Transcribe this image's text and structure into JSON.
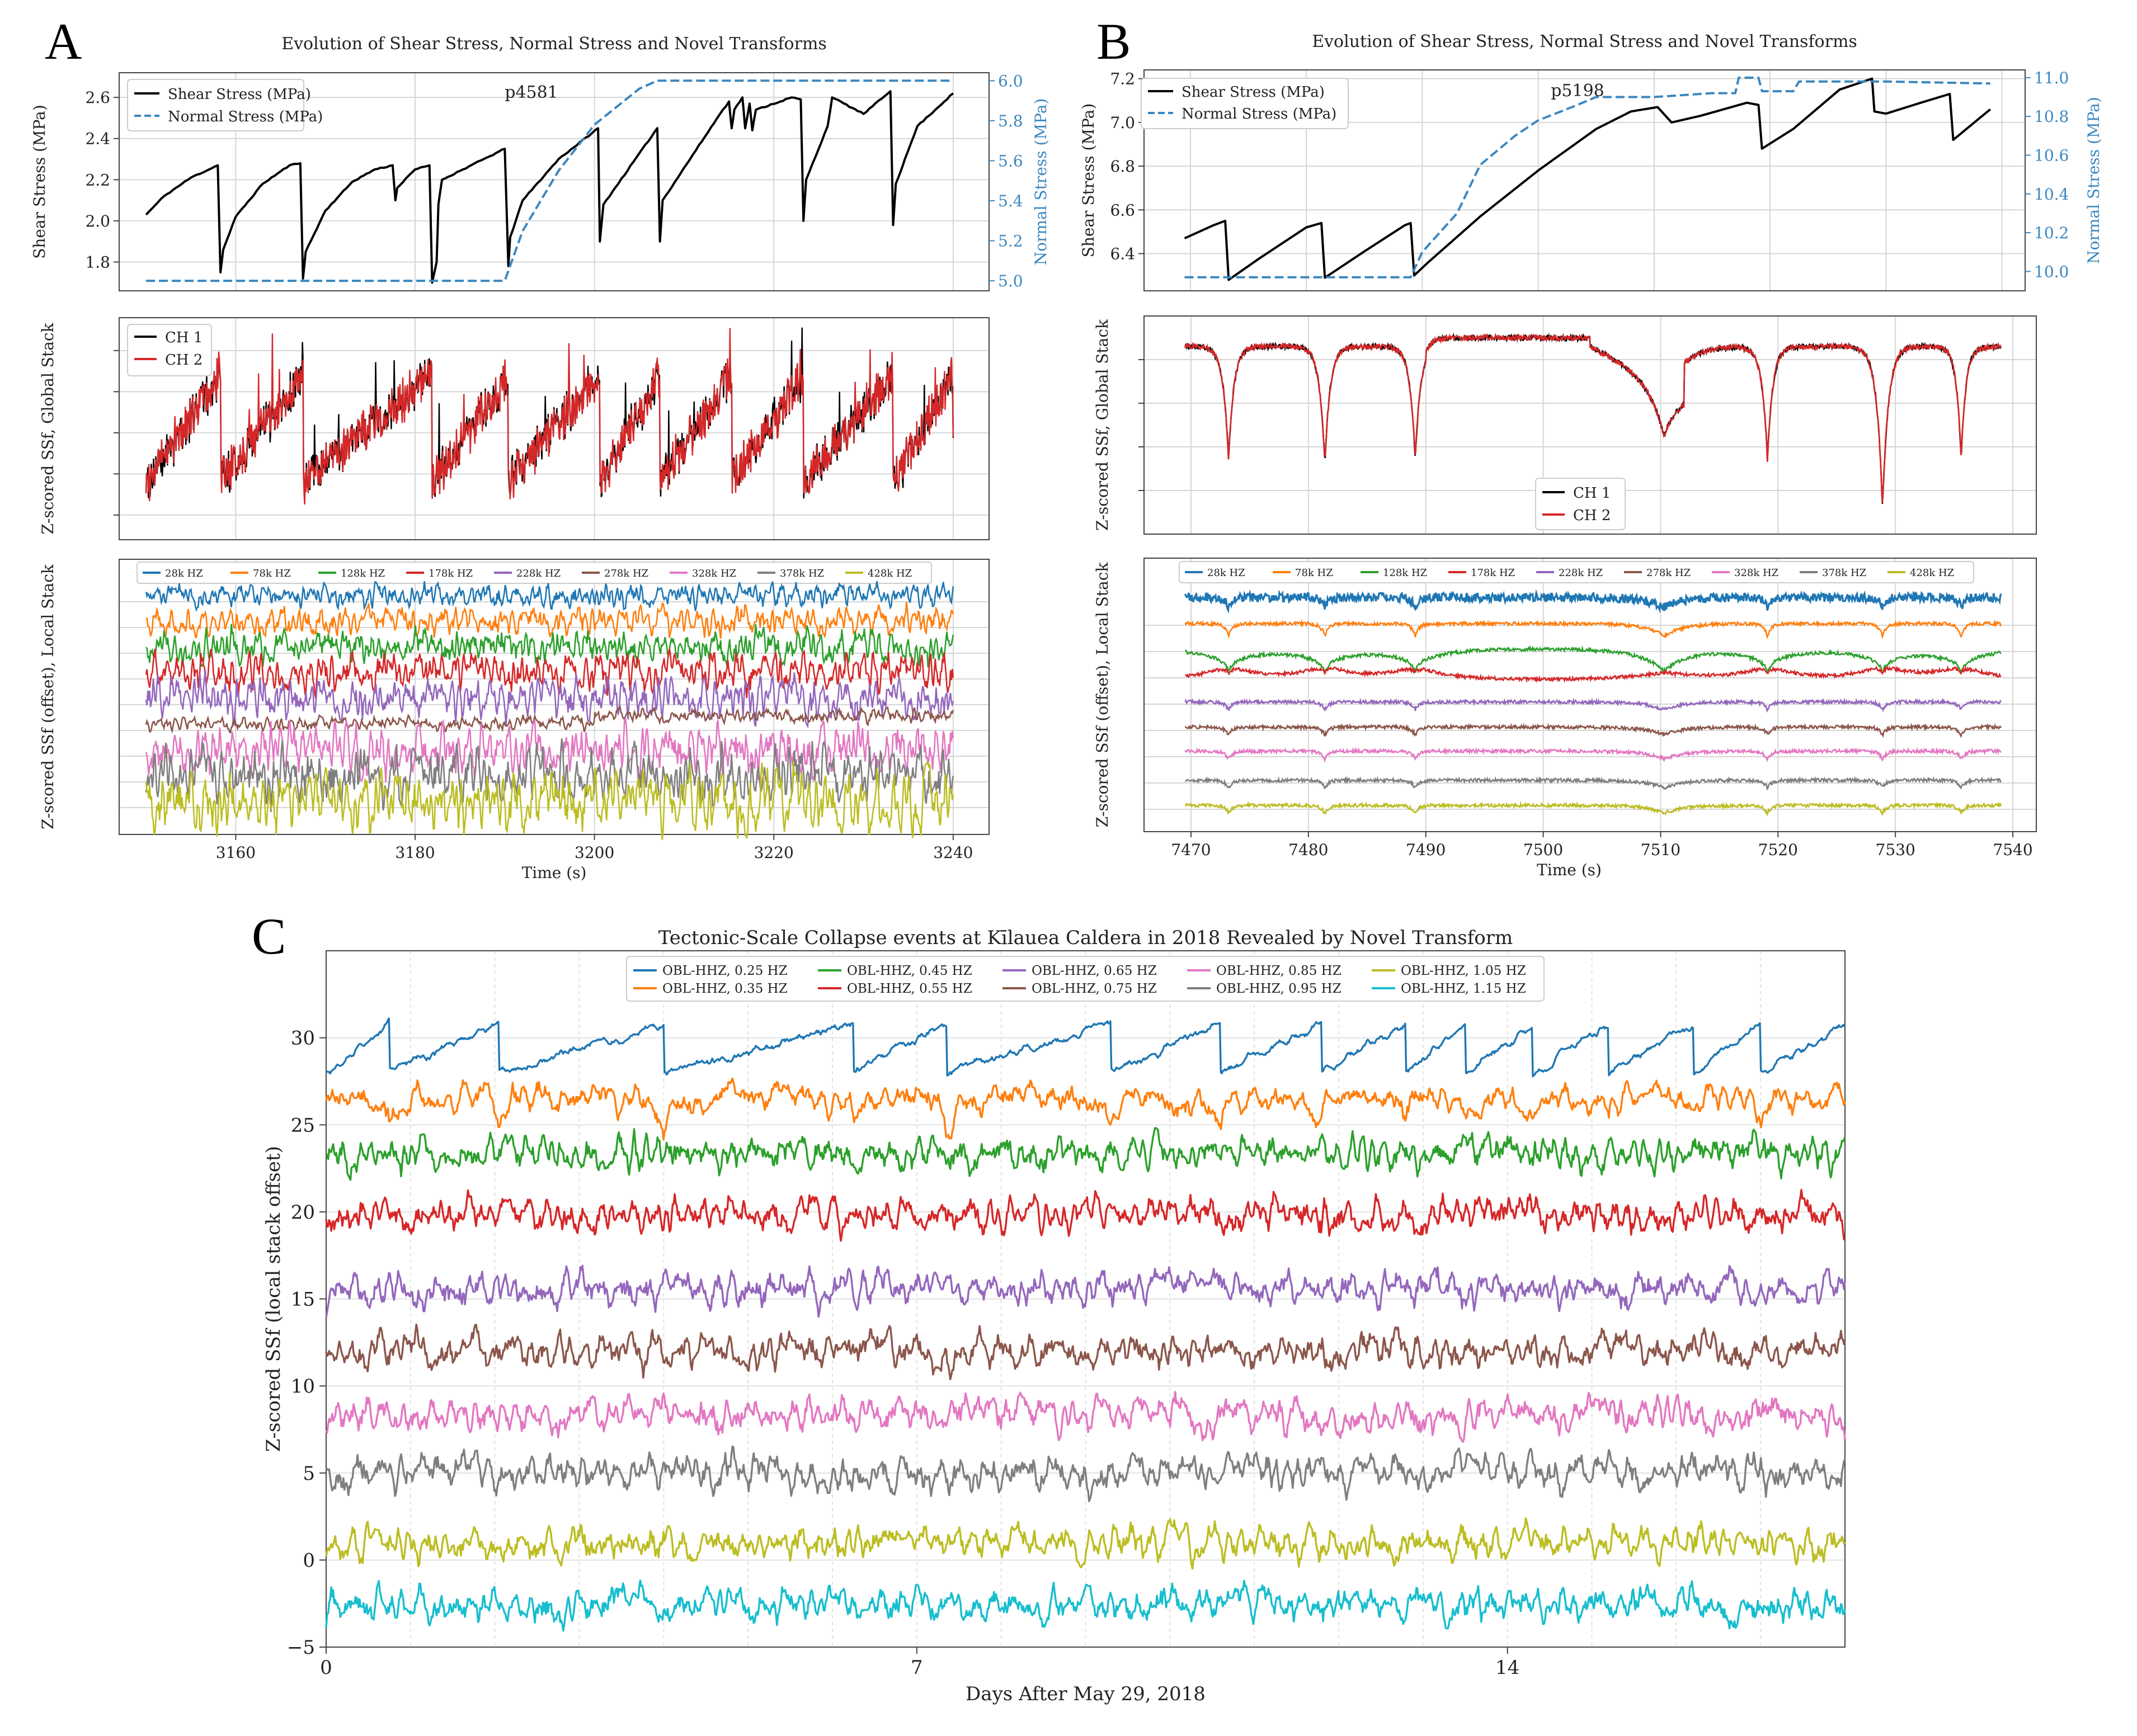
{
  "figure": {
    "panel_letters": [
      "A",
      "B",
      "C"
    ]
  },
  "chart_data": [
    {
      "id": "A1",
      "type": "line",
      "title": "Evolution of Shear Stress, Normal Stress and Novel Transforms",
      "annotation": "p4581",
      "xlabel": "",
      "ylabel": "Shear Stress (MPa)",
      "ylabel_right": "Normal Stress (MPa)",
      "xlim": [
        3147,
        3244
      ],
      "ylim": [
        1.66,
        2.72
      ],
      "ylim_right": [
        4.95,
        6.04
      ],
      "yticks": [
        1.8,
        2.0,
        2.2,
        2.4,
        2.6
      ],
      "yticks_right": [
        5.0,
        5.2,
        5.4,
        5.6,
        5.8,
        6.0
      ],
      "xticks": [
        3160,
        3180,
        3200,
        3220,
        3240
      ],
      "legend": [
        "Shear Stress (MPa)",
        "Normal Stress (MPa)"
      ],
      "series": [
        {
          "name": "Shear Stress (MPa)",
          "axis": "left",
          "color": "#000000",
          "style": "solid",
          "x": [
            3150,
            3152,
            3155,
            3158,
            3158.3,
            3158.6,
            3160,
            3163,
            3166,
            3167.2,
            3167.5,
            3167.8,
            3170,
            3173,
            3175.5,
            3177.5,
            3177.8,
            3178,
            3180,
            3181.6,
            3181.9,
            3182.4,
            3182.6,
            3183,
            3190,
            3190.4,
            3190.6,
            3192,
            3196,
            3200.4,
            3200.6,
            3201,
            3207,
            3207.3,
            3207.6,
            3214,
            3215,
            3215.3,
            3215.6,
            3216.5,
            3216.8,
            3217.3,
            3217.6,
            3218,
            3222,
            3223,
            3223.3,
            3223.6,
            3226,
            3226.5,
            3230,
            3233,
            3233.3,
            3233.6,
            3236,
            3240
          ],
          "y": [
            2.03,
            2.12,
            2.21,
            2.27,
            1.75,
            1.86,
            2.02,
            2.18,
            2.27,
            2.28,
            1.72,
            1.85,
            2.05,
            2.19,
            2.25,
            2.27,
            2.1,
            2.16,
            2.25,
            2.27,
            1.7,
            1.8,
            2.08,
            2.2,
            2.35,
            1.78,
            1.92,
            2.1,
            2.3,
            2.45,
            1.9,
            2.08,
            2.45,
            1.9,
            2.1,
            2.52,
            2.58,
            2.45,
            2.54,
            2.6,
            2.45,
            2.57,
            2.44,
            2.54,
            2.6,
            2.59,
            2.0,
            2.2,
            2.46,
            2.6,
            2.52,
            2.63,
            1.98,
            2.18,
            2.46,
            2.62
          ]
        },
        {
          "name": "Normal Stress (MPa)",
          "axis": "right",
          "color": "#3a87c0",
          "style": "dashed",
          "x": [
            3150,
            3190,
            3192,
            3196,
            3200,
            3205,
            3207,
            3215,
            3225,
            3235,
            3240
          ],
          "y": [
            5.0,
            5.0,
            5.25,
            5.55,
            5.78,
            5.96,
            6.0,
            6.0,
            6.0,
            6.0,
            6.0
          ]
        }
      ]
    },
    {
      "id": "A2",
      "type": "line",
      "title": "",
      "xlabel": "",
      "ylabel": "Z-scored SSf, Global Stack",
      "xlim": [
        3147,
        3244
      ],
      "ylim": [
        -2.6,
        2.8
      ],
      "legend": [
        "CH 1",
        "CH 2"
      ],
      "series": [
        {
          "name": "CH 1",
          "color": "#000000"
        },
        {
          "name": "CH 2",
          "color": "#d62728"
        }
      ],
      "reset_times_s": [
        3158.3,
        3167.5,
        3181.9,
        3190.4,
        3200.6,
        3207.3,
        3215.3,
        3223.3,
        3233.3
      ]
    },
    {
      "id": "A3",
      "type": "line",
      "title": "",
      "xlabel": "Time (s)",
      "ylabel": "Z-scored SSf (offset), Local Stack",
      "xlim": [
        3147,
        3244
      ],
      "xticks": [
        3160,
        3180,
        3200,
        3220,
        3240
      ],
      "legend": [
        "28k HZ",
        "78k HZ",
        "128k HZ",
        "178k HZ",
        "228k HZ",
        "278k HZ",
        "328k HZ",
        "378k HZ",
        "428k HZ"
      ],
      "series": [
        {
          "name": "28k HZ",
          "color": "#1f77b4",
          "offset": 8
        },
        {
          "name": "78k HZ",
          "color": "#ff7f0e",
          "offset": 7
        },
        {
          "name": "128k HZ",
          "color": "#2ca02c",
          "offset": 6
        },
        {
          "name": "178k HZ",
          "color": "#d62728",
          "offset": 5
        },
        {
          "name": "228k HZ",
          "color": "#9467bd",
          "offset": 4
        },
        {
          "name": "278k HZ",
          "color": "#8c564b",
          "offset": 3
        },
        {
          "name": "328k HZ",
          "color": "#e377c2",
          "offset": 2
        },
        {
          "name": "378k HZ",
          "color": "#7f7f7f",
          "offset": 1
        },
        {
          "name": "428k HZ",
          "color": "#bcbd22",
          "offset": 0
        }
      ]
    },
    {
      "id": "B1",
      "type": "line",
      "title": "Evolution of Shear Stress, Normal Stress and Novel Transforms",
      "annotation": "p5198",
      "xlabel": "",
      "ylabel": "Shear Stress (MPa)",
      "ylabel_right": "Normal Stress (MPa)",
      "xlim": [
        7466,
        7542
      ],
      "ylim": [
        6.23,
        7.24
      ],
      "ylim_right": [
        9.9,
        11.04
      ],
      "yticks": [
        6.4,
        6.6,
        6.8,
        7.0,
        7.2
      ],
      "yticks_right": [
        10.0,
        10.2,
        10.4,
        10.6,
        10.8,
        11.0
      ],
      "xticks": [
        7470,
        7480,
        7490,
        7500,
        7510,
        7520,
        7530,
        7540
      ],
      "legend": [
        "Shear Stress (MPa)",
        "Normal Stress (MPa)"
      ],
      "series": [
        {
          "name": "Shear Stress (MPa)",
          "axis": "left",
          "color": "#000000",
          "style": "solid",
          "x": [
            7469.5,
            7472,
            7473,
            7473.3,
            7476,
            7480,
            7481.3,
            7481.6,
            7485,
            7488.5,
            7489,
            7489.3,
            7490.5,
            7495,
            7500,
            7505,
            7508,
            7510.3,
            7511.5,
            7514,
            7518,
            7519,
            7519.3,
            7522,
            7526,
            7528.8,
            7529,
            7530,
            7533,
            7535.5,
            7535.8,
            7539
          ],
          "y": [
            6.47,
            6.53,
            6.55,
            6.28,
            6.38,
            6.52,
            6.54,
            6.29,
            6.41,
            6.53,
            6.54,
            6.3,
            6.36,
            6.57,
            6.78,
            6.97,
            7.05,
            7.07,
            7.0,
            7.03,
            7.09,
            7.08,
            6.88,
            6.97,
            7.15,
            7.2,
            7.05,
            7.04,
            7.09,
            7.13,
            6.92,
            7.06
          ]
        },
        {
          "name": "Normal Stress (MPa)",
          "axis": "right",
          "color": "#3a87c0",
          "style": "dashed",
          "x": [
            7469.5,
            7489,
            7490,
            7493,
            7495,
            7498,
            7500,
            7503,
            7505,
            7510,
            7515,
            7517,
            7517.3,
            7519,
            7519.3,
            7522,
            7522.5,
            7530,
            7539
          ],
          "y": [
            9.97,
            9.97,
            10.1,
            10.3,
            10.55,
            10.7,
            10.78,
            10.85,
            10.9,
            10.9,
            10.92,
            10.92,
            11.0,
            11.0,
            10.93,
            10.93,
            10.98,
            10.98,
            10.97
          ]
        }
      ]
    },
    {
      "id": "B2",
      "type": "line",
      "title": "",
      "xlabel": "",
      "ylabel": "Z-scored SSf, Global Stack",
      "xlim": [
        7466,
        7542
      ],
      "ylim": [
        -4.0,
        1.0
      ],
      "legend": [
        "CH 1",
        "CH 2"
      ],
      "legend_position": "bottom-center",
      "series": [
        {
          "name": "CH 1",
          "color": "#000000"
        },
        {
          "name": "CH 2",
          "color": "#d62728"
        }
      ],
      "dip_times_s": [
        7473.2,
        7481.4,
        7489.1,
        7510.3,
        7519.1,
        7528.9,
        7535.6
      ]
    },
    {
      "id": "B3",
      "type": "line",
      "title": "",
      "xlabel": "Time (s)",
      "ylabel": "Z-scored SSf (offset), Local Stack",
      "xlim": [
        7466,
        7542
      ],
      "xticks": [
        7470,
        7480,
        7490,
        7500,
        7510,
        7520,
        7530,
        7540
      ],
      "legend": [
        "28k HZ",
        "78k HZ",
        "128k HZ",
        "178k HZ",
        "228k HZ",
        "278k HZ",
        "328k HZ",
        "378k HZ",
        "428k HZ"
      ],
      "series": [
        {
          "name": "28k HZ",
          "color": "#1f77b4",
          "offset": 8
        },
        {
          "name": "78k HZ",
          "color": "#ff7f0e",
          "offset": 7
        },
        {
          "name": "128k HZ",
          "color": "#2ca02c",
          "offset": 6
        },
        {
          "name": "178k HZ",
          "color": "#d62728",
          "offset": 5
        },
        {
          "name": "228k HZ",
          "color": "#9467bd",
          "offset": 4
        },
        {
          "name": "278k HZ",
          "color": "#8c564b",
          "offset": 3
        },
        {
          "name": "328k HZ",
          "color": "#e377c2",
          "offset": 2
        },
        {
          "name": "378k HZ",
          "color": "#7f7f7f",
          "offset": 1
        },
        {
          "name": "428k HZ",
          "color": "#bcbd22",
          "offset": 0
        }
      ]
    },
    {
      "id": "C",
      "type": "line",
      "title": "Tectonic-Scale Collapse events at Kīlauea Caldera in 2018 Revealed by Novel Transform",
      "xlabel": "Days After May 29, 2018",
      "ylabel": "Z-scored SSf (local stack offset)",
      "xlim": [
        0,
        18
      ],
      "ylim": [
        -5,
        35
      ],
      "xticks": [
        0,
        7,
        14
      ],
      "yticks": [
        -5,
        0,
        5,
        10,
        15,
        20,
        25,
        30
      ],
      "legend": [
        "OBL-HHZ, 0.25 HZ",
        "OBL-HHZ, 0.35 HZ",
        "OBL-HHZ, 0.45 HZ",
        "OBL-HHZ, 0.55 HZ",
        "OBL-HHZ, 0.65 HZ",
        "OBL-HHZ, 0.75 HZ",
        "OBL-HHZ, 0.85 HZ",
        "OBL-HHZ, 0.95 HZ",
        "OBL-HHZ, 1.05 HZ",
        "OBL-HHZ, 1.15 HZ"
      ],
      "series": [
        {
          "name": "OBL-HHZ, 0.25 HZ",
          "color": "#1f77b4",
          "baseline": 29.0
        },
        {
          "name": "OBL-HHZ, 0.35 HZ",
          "color": "#ff7f0e",
          "baseline": 26.5
        },
        {
          "name": "OBL-HHZ, 0.45 HZ",
          "color": "#2ca02c",
          "baseline": 23.3
        },
        {
          "name": "OBL-HHZ, 0.55 HZ",
          "color": "#d62728",
          "baseline": 19.8
        },
        {
          "name": "OBL-HHZ, 0.65 HZ",
          "color": "#9467bd",
          "baseline": 15.6
        },
        {
          "name": "OBL-HHZ, 0.75 HZ",
          "color": "#8c564b",
          "baseline": 12.0
        },
        {
          "name": "OBL-HHZ, 0.85 HZ",
          "color": "#e377c2",
          "baseline": 8.3
        },
        {
          "name": "OBL-HHZ, 0.95 HZ",
          "color": "#7f7f7f",
          "baseline": 5.0
        },
        {
          "name": "OBL-HHZ, 1.05 HZ",
          "color": "#bcbd22",
          "baseline": 1.0
        },
        {
          "name": "OBL-HHZ, 1.15 HZ",
          "color": "#17becf",
          "baseline": -2.5
        }
      ],
      "collapse_days": [
        0.75,
        2.05,
        4.0,
        6.25,
        7.35,
        9.3,
        10.6,
        11.8,
        12.8,
        13.5,
        14.3,
        15.2,
        16.2,
        17.0
      ]
    }
  ]
}
